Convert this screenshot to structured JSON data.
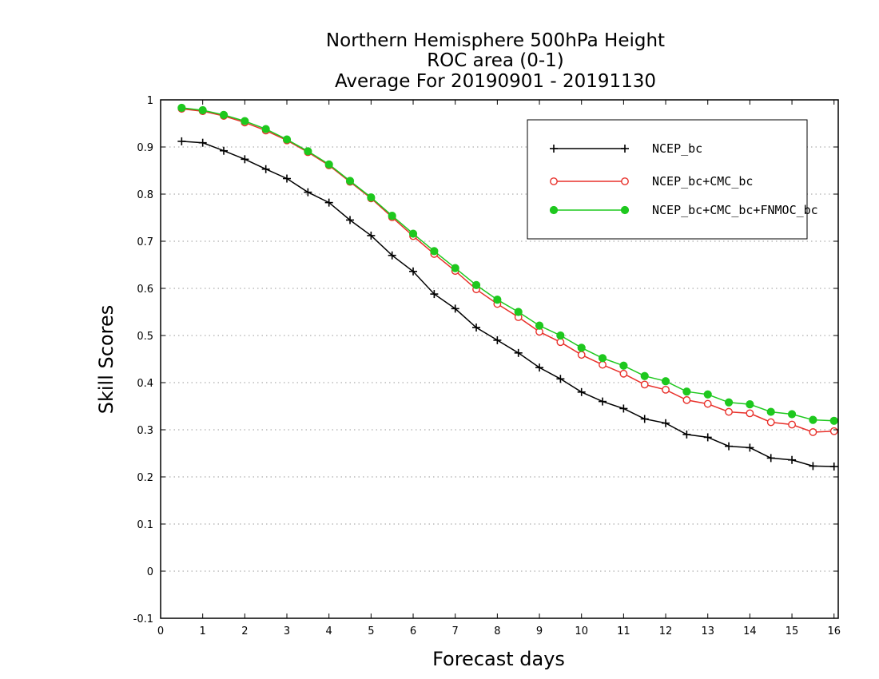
{
  "chart_data": {
    "type": "line",
    "title": [
      "Northern Hemisphere 500hPa Height",
      "ROC area (0-1)",
      "Average For 20190901 - 20191130"
    ],
    "xlabel": "Forecast days",
    "ylabel": "Skill Scores",
    "xlim": [
      0,
      16.1
    ],
    "ylim": [
      -0.1,
      1
    ],
    "xticks": [
      0,
      1,
      2,
      3,
      4,
      5,
      6,
      7,
      8,
      9,
      10,
      11,
      12,
      13,
      14,
      15,
      16
    ],
    "xtick_labels": [
      "0",
      "1",
      "2",
      "3",
      "4",
      "5",
      "6",
      "7",
      "8",
      "9",
      "10",
      "11",
      "12",
      "13",
      "14",
      "15",
      "16"
    ],
    "yticks": [
      -0.1,
      0,
      0.1,
      0.2,
      0.3,
      0.4,
      0.5,
      0.6,
      0.7,
      0.8,
      0.9,
      1
    ],
    "ytick_labels": [
      "-0.1",
      "0",
      "0.1",
      "0.2",
      "0.3",
      "0.4",
      "0.5",
      "0.6",
      "0.7",
      "0.8",
      "0.9",
      "1"
    ],
    "grid": "horizontal dotted",
    "legend_position": "top-right",
    "x": [
      0.5,
      1,
      1.5,
      2,
      2.5,
      3,
      3.5,
      4,
      4.5,
      5,
      5.5,
      6,
      6.5,
      7,
      7.5,
      8,
      8.5,
      9,
      9.5,
      10,
      10.5,
      11,
      11.5,
      12,
      12.5,
      13,
      13.5,
      14,
      14.5,
      15,
      15.5,
      16
    ],
    "series": [
      {
        "name": "NCEP_bc",
        "color": "#000000",
        "marker": "plus",
        "values": [
          0.912,
          0.909,
          0.892,
          0.874,
          0.853,
          0.833,
          0.804,
          0.782,
          0.745,
          0.712,
          0.67,
          0.636,
          0.588,
          0.557,
          0.517,
          0.49,
          0.463,
          0.432,
          0.408,
          0.38,
          0.36,
          0.345,
          0.323,
          0.314,
          0.29,
          0.284,
          0.265,
          0.262,
          0.24,
          0.236,
          0.223,
          0.222
        ]
      },
      {
        "name": "NCEP_bc+CMC_bc",
        "color": "#e8302a",
        "marker": "open-circle",
        "values": [
          0.981,
          0.976,
          0.966,
          0.952,
          0.935,
          0.914,
          0.889,
          0.861,
          0.826,
          0.791,
          0.751,
          0.711,
          0.673,
          0.637,
          0.598,
          0.567,
          0.539,
          0.508,
          0.486,
          0.459,
          0.438,
          0.419,
          0.396,
          0.385,
          0.363,
          0.355,
          0.338,
          0.335,
          0.316,
          0.311,
          0.295,
          0.297
        ]
      },
      {
        "name": "NCEP_bc+CMC_bc+FNMOC_bc",
        "color": "#1ec81e",
        "marker": "filled-circle",
        "values": [
          0.983,
          0.978,
          0.968,
          0.955,
          0.938,
          0.916,
          0.891,
          0.863,
          0.828,
          0.793,
          0.754,
          0.716,
          0.679,
          0.643,
          0.607,
          0.576,
          0.55,
          0.521,
          0.5,
          0.474,
          0.452,
          0.436,
          0.414,
          0.403,
          0.381,
          0.375,
          0.358,
          0.354,
          0.338,
          0.333,
          0.321,
          0.319
        ]
      }
    ]
  }
}
